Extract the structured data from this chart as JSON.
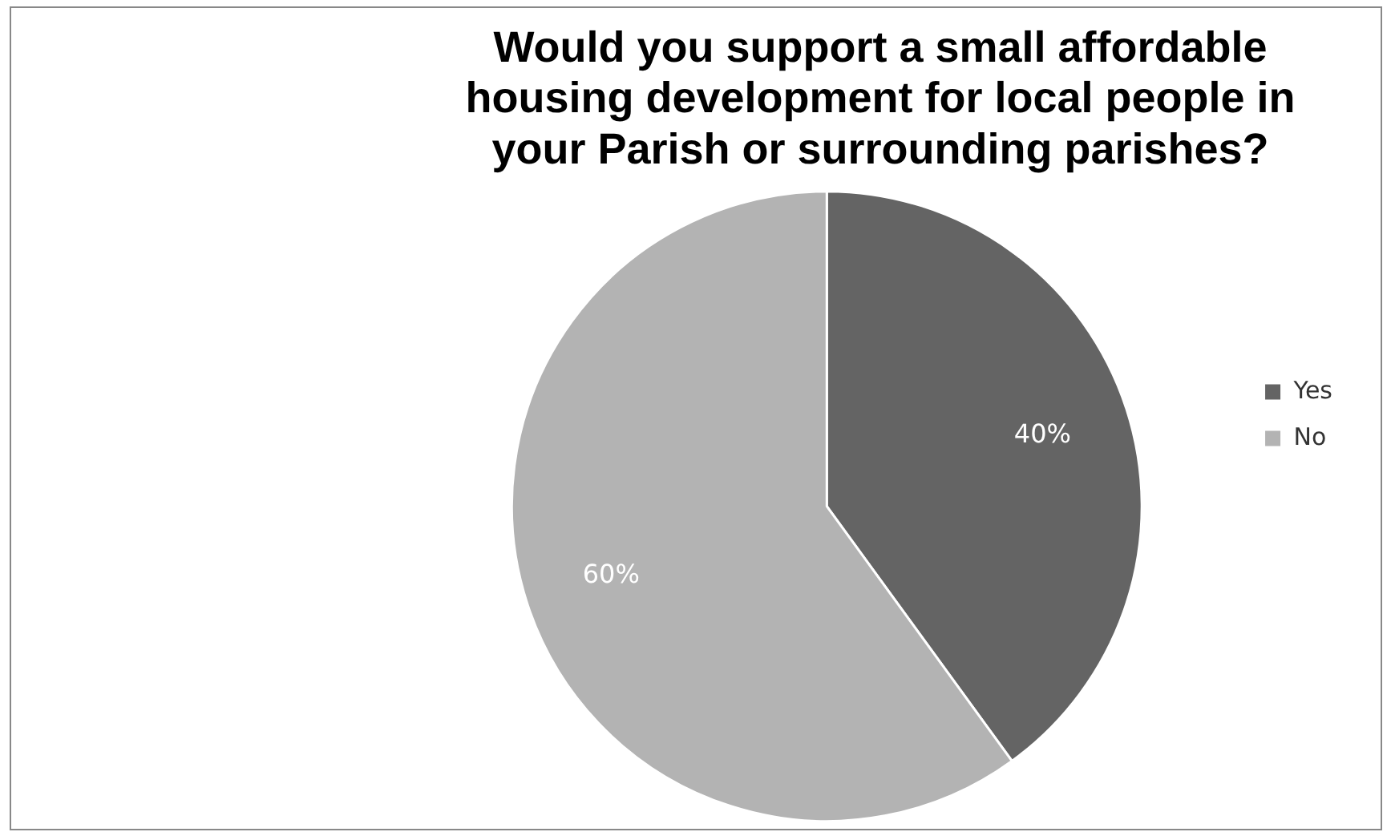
{
  "chart_data": {
    "type": "pie",
    "title": "Would you support a small affordable\nhousing development for local people in\nyour Parish or surrounding parishes?",
    "categories": [
      "Yes",
      "No"
    ],
    "values": [
      40,
      60
    ],
    "colors": [
      "#646464",
      "#b3b3b3"
    ],
    "value_labels": [
      "40%",
      "60%"
    ],
    "legend": "right"
  }
}
